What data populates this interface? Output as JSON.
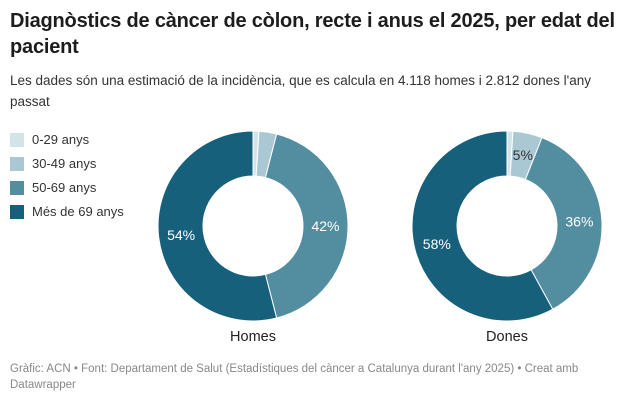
{
  "chart_data": {
    "type": "pie",
    "variant": "donut",
    "title": "Diagnòstics de càncer de còlon, recte i anus el 2025, per edat del pacient",
    "subtitle": "Les dades són una estimació de la incidència, que es calcula en 4.118 homes i 2.812 dones l'any passat",
    "legend_position": "left",
    "categories": [
      "0-29 anys",
      "30-49 anys",
      "50-69 anys",
      "Més de 69 anys"
    ],
    "colors": [
      "#d3e4e9",
      "#a9c8d3",
      "#528da0",
      "#17607c"
    ],
    "charts": [
      {
        "label": "Homes",
        "values": [
          1,
          3,
          42,
          54
        ],
        "labels": [
          "",
          "",
          "42%",
          "54%"
        ],
        "label_colors": [
          "",
          "",
          "#ffffff",
          "#ffffff"
        ]
      },
      {
        "label": "Dones",
        "values": [
          1,
          5,
          36,
          58
        ],
        "labels": [
          "",
          "5%",
          "36%",
          "58%"
        ],
        "label_colors": [
          "",
          "#333333",
          "#ffffff",
          "#ffffff"
        ]
      }
    ]
  },
  "footer": {
    "text": "Gràfic: ACN • Font: Departament de Salut (Estadístiques del càncer a Catalunya durant l'any 2025) • Creat amb Datawrapper"
  }
}
